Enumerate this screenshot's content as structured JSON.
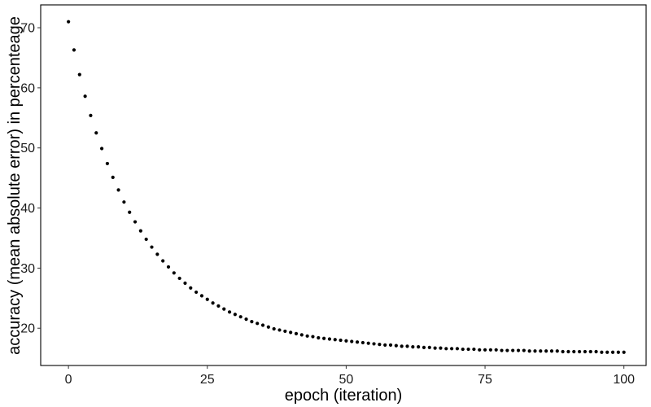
{
  "chart_data": {
    "type": "scatter",
    "title": "",
    "xlabel": "epoch (iteration)",
    "ylabel": "accuracy (mean absolute error) in percenteage",
    "xlim": [
      -5,
      104
    ],
    "ylim": [
      13.8,
      73.8
    ],
    "x_ticks": [
      0,
      25,
      50,
      75,
      100
    ],
    "y_ticks": [
      20,
      30,
      40,
      50,
      60,
      70
    ],
    "grid": false,
    "legend": "none",
    "point_color": "#000000",
    "series": [
      {
        "x": [
          0,
          1,
          2,
          3,
          4,
          5,
          6,
          7,
          8,
          9,
          10,
          11,
          12,
          13,
          14,
          15,
          16,
          17,
          18,
          19,
          20,
          21,
          22,
          23,
          24,
          25,
          26,
          27,
          28,
          29,
          30,
          31,
          32,
          33,
          34,
          35,
          36,
          37,
          38,
          39,
          40,
          41,
          42,
          43,
          44,
          45,
          46,
          47,
          48,
          49,
          50,
          51,
          52,
          53,
          54,
          55,
          56,
          57,
          58,
          59,
          60,
          61,
          62,
          63,
          64,
          65,
          66,
          67,
          68,
          69,
          70,
          71,
          72,
          73,
          74,
          75,
          76,
          77,
          78,
          79,
          80,
          81,
          82,
          83,
          84,
          85,
          86,
          87,
          88,
          89,
          90,
          91,
          92,
          93,
          94,
          95,
          96,
          97,
          98,
          99,
          100
        ],
        "y": [
          71.0,
          66.3,
          62.2,
          58.6,
          55.4,
          52.5,
          49.9,
          47.4,
          45.1,
          43.0,
          41.0,
          39.3,
          37.7,
          36.2,
          34.8,
          33.5,
          32.3,
          31.2,
          30.2,
          29.2,
          28.3,
          27.5,
          26.7,
          26.0,
          25.4,
          24.8,
          24.2,
          23.7,
          23.2,
          22.7,
          22.3,
          21.9,
          21.5,
          21.1,
          20.8,
          20.5,
          20.2,
          19.9,
          19.7,
          19.5,
          19.3,
          19.1,
          18.9,
          18.7,
          18.6,
          18.4,
          18.3,
          18.2,
          18.1,
          18.0,
          17.9,
          17.8,
          17.7,
          17.6,
          17.5,
          17.4,
          17.3,
          17.2,
          17.2,
          17.1,
          17.0,
          17.0,
          16.9,
          16.9,
          16.8,
          16.8,
          16.7,
          16.7,
          16.6,
          16.6,
          16.6,
          16.5,
          16.5,
          16.5,
          16.4,
          16.4,
          16.4,
          16.4,
          16.3,
          16.3,
          16.3,
          16.3,
          16.3,
          16.2,
          16.2,
          16.2,
          16.2,
          16.2,
          16.2,
          16.1,
          16.1,
          16.1,
          16.1,
          16.1,
          16.1,
          16.1,
          16.0,
          16.0,
          16.0,
          16.0,
          16.0
        ]
      }
    ]
  }
}
